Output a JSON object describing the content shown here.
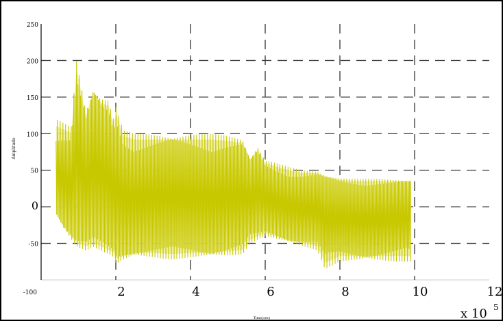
{
  "chart_data": {
    "type": "line",
    "title": "",
    "xlabel": "Time(sec)",
    "ylabel": "Amplitude",
    "x_exponent_label": "x 10",
    "x_exponent_power": "5",
    "xlim": [
      0,
      12
    ],
    "ylim": [
      -100,
      250
    ],
    "x_ticks": [
      2,
      4,
      6,
      8,
      10,
      12
    ],
    "x_tick_labels": [
      "2",
      "4",
      "6",
      "8",
      "10",
      "12"
    ],
    "y_ticks": [
      -100,
      -50,
      0,
      50,
      100,
      150,
      200,
      250
    ],
    "y_tick_labels": [
      "-100",
      "-50",
      "0",
      "50",
      "100",
      "150",
      "200",
      "250"
    ],
    "grid": true,
    "grid_style": "dashed",
    "series": [
      {
        "color": "#c8c800",
        "envelope": [
          {
            "x": 0.4,
            "max": 120,
            "min": -10
          },
          {
            "x": 0.6,
            "max": 115,
            "min": -30
          },
          {
            "x": 0.8,
            "max": 110,
            "min": -45
          },
          {
            "x": 0.95,
            "max": 205,
            "min": -55
          },
          {
            "x": 1.2,
            "max": 135,
            "min": -60
          },
          {
            "x": 1.4,
            "max": 170,
            "min": -55
          },
          {
            "x": 1.6,
            "max": 155,
            "min": -60
          },
          {
            "x": 1.8,
            "max": 150,
            "min": -65
          },
          {
            "x": 1.95,
            "max": 120,
            "min": -70
          },
          {
            "x": 2.0,
            "max": 140,
            "min": -80
          },
          {
            "x": 2.2,
            "max": 105,
            "min": -75
          },
          {
            "x": 2.5,
            "max": 100,
            "min": -70
          },
          {
            "x": 3.0,
            "max": 100,
            "min": -70
          },
          {
            "x": 3.5,
            "max": 100,
            "min": -72
          },
          {
            "x": 4.0,
            "max": 100,
            "min": -70
          },
          {
            "x": 4.5,
            "max": 100,
            "min": -70
          },
          {
            "x": 5.0,
            "max": 98,
            "min": -68
          },
          {
            "x": 5.4,
            "max": 95,
            "min": -65
          },
          {
            "x": 5.6,
            "max": 70,
            "min": -50
          },
          {
            "x": 5.8,
            "max": 85,
            "min": -45
          },
          {
            "x": 6.0,
            "max": 65,
            "min": -40
          },
          {
            "x": 6.3,
            "max": 60,
            "min": -45
          },
          {
            "x": 6.6,
            "max": 55,
            "min": -50
          },
          {
            "x": 7.0,
            "max": 50,
            "min": -55
          },
          {
            "x": 7.4,
            "max": 50,
            "min": -60
          },
          {
            "x": 7.6,
            "max": 45,
            "min": -85
          },
          {
            "x": 8.0,
            "max": 40,
            "min": -75
          },
          {
            "x": 8.5,
            "max": 38,
            "min": -75
          },
          {
            "x": 9.0,
            "max": 38,
            "min": -75
          },
          {
            "x": 9.5,
            "max": 38,
            "min": -75
          },
          {
            "x": 9.9,
            "max": 38,
            "min": -75
          }
        ]
      }
    ]
  }
}
